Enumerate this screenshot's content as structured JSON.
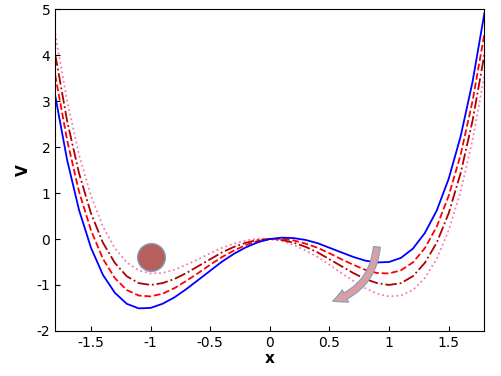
{
  "chart_data": {
    "type": "line",
    "xlabel": "x",
    "ylabel": "V",
    "xlim": [
      -1.8,
      1.8
    ],
    "ylim": [
      -2,
      5
    ],
    "xticks": [
      -1.5,
      -1,
      -0.5,
      0,
      0.5,
      1,
      1.5
    ],
    "yticks": [
      -2,
      -1,
      0,
      1,
      2,
      3,
      4,
      5
    ],
    "x": [
      -1.8,
      -1.7,
      -1.6,
      -1.5,
      -1.4,
      -1.3,
      -1.2,
      -1.1,
      -1.0,
      -0.9,
      -0.8,
      -0.7,
      -0.6,
      -0.5,
      -0.4,
      -0.3,
      -0.2,
      -0.1,
      0,
      0.1,
      0.2,
      0.3,
      0.4,
      0.5,
      0.6,
      0.7,
      0.8,
      0.9,
      1.0,
      1.1,
      1.2,
      1.3,
      1.4,
      1.5,
      1.6,
      1.7,
      1.8
    ],
    "series": [
      {
        "color": "#ff77aa",
        "line_style": "dotted",
        "values": [
          4.47,
          3.0,
          1.83,
          0.94,
          0.27,
          -0.2,
          -0.51,
          -0.68,
          -0.75,
          -0.74,
          -0.67,
          -0.56,
          -0.44,
          -0.31,
          -0.19,
          -0.1,
          -0.03,
          0.01,
          0,
          -0.04,
          -0.13,
          -0.25,
          -0.39,
          -0.56,
          -0.74,
          -0.91,
          -1.07,
          -1.19,
          -1.25,
          -1.23,
          -1.11,
          -0.85,
          -0.43,
          0.19,
          1.03,
          2.15,
          3.57
        ]
      },
      {
        "color": "#b00000",
        "line_style": "dashdot",
        "values": [
          4.02,
          2.57,
          1.43,
          0.56,
          -0.08,
          -0.52,
          -0.81,
          -0.96,
          -1.0,
          -0.96,
          -0.87,
          -0.74,
          -0.59,
          -0.44,
          -0.29,
          -0.17,
          -0.08,
          -0.02,
          0,
          -0.02,
          -0.08,
          -0.17,
          -0.29,
          -0.44,
          -0.59,
          -0.74,
          -0.87,
          -0.96,
          -1.0,
          -0.96,
          -0.81,
          -0.52,
          -0.08,
          0.56,
          1.43,
          2.57,
          4.02
        ]
      },
      {
        "color": "#ff0000",
        "line_style": "dashed",
        "values": [
          3.57,
          2.15,
          1.03,
          0.19,
          -0.43,
          -0.85,
          -1.11,
          -1.23,
          -1.25,
          -1.19,
          -1.07,
          -0.91,
          -0.74,
          -0.56,
          -0.39,
          -0.25,
          -0.13,
          -0.04,
          0,
          0.01,
          -0.03,
          -0.1,
          -0.19,
          -0.31,
          -0.44,
          -0.56,
          -0.67,
          -0.74,
          -0.75,
          -0.68,
          -0.51,
          -0.2,
          0.27,
          0.94,
          1.83,
          3.0,
          4.47
        ]
      },
      {
        "color": "#0000ff",
        "line_style": "solid",
        "values": [
          3.12,
          1.72,
          0.63,
          -0.19,
          -0.78,
          -1.17,
          -1.41,
          -1.51,
          -1.5,
          -1.41,
          -1.27,
          -1.09,
          -0.89,
          -0.69,
          -0.49,
          -0.32,
          -0.18,
          -0.07,
          0,
          0.03,
          0.02,
          -0.02,
          -0.09,
          -0.19,
          -0.29,
          -0.39,
          -0.47,
          -0.51,
          -0.5,
          -0.41,
          -0.21,
          0.13,
          0.62,
          1.31,
          2.23,
          3.42,
          4.92
        ]
      }
    ]
  }
}
